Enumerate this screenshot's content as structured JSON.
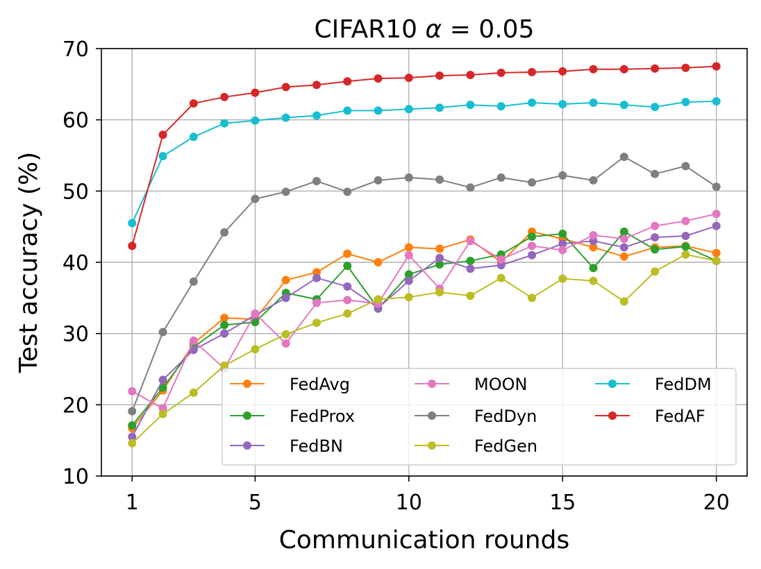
{
  "chart_data": {
    "type": "line",
    "title": "CIFAR10 α = 0.05",
    "title_main": "CIFAR10",
    "title_symbol": "α",
    "title_eq": " = 0.05",
    "xlabel": "Communication rounds",
    "ylabel": "Test accuracy (%)",
    "xlim": [
      0,
      21
    ],
    "ylim": [
      10,
      70
    ],
    "xticks": [
      1,
      5,
      10,
      15,
      20
    ],
    "yticks": [
      10,
      20,
      30,
      40,
      50,
      60,
      70
    ],
    "grid": true,
    "legend_position": "lower-right",
    "x": [
      1,
      2,
      3,
      4,
      5,
      6,
      7,
      8,
      9,
      10,
      11,
      12,
      13,
      14,
      15,
      16,
      17,
      18,
      19,
      20
    ],
    "series": [
      {
        "name": "FedAvg",
        "color": "#ff7f0e",
        "values": [
          16.7,
          22.0,
          28.6,
          32.2,
          32.0,
          37.5,
          38.6,
          41.2,
          40.0,
          42.1,
          41.9,
          43.2,
          40.0,
          44.3,
          43.3,
          42.1,
          40.8,
          42.1,
          42.3,
          41.3
        ]
      },
      {
        "name": "FedProx",
        "color": "#2ca02c",
        "values": [
          17.1,
          22.4,
          28.1,
          31.2,
          31.6,
          35.7,
          34.8,
          39.5,
          33.5,
          38.3,
          39.7,
          40.2,
          41.1,
          43.6,
          44.0,
          39.2,
          44.3,
          41.8,
          42.2,
          40.2
        ]
      },
      {
        "name": "FedBN",
        "color": "#9467bd",
        "values": [
          15.5,
          23.5,
          27.7,
          30.0,
          32.6,
          35.0,
          37.8,
          36.6,
          33.6,
          37.4,
          40.6,
          39.1,
          39.6,
          41.0,
          42.6,
          43.0,
          42.1,
          43.5,
          43.7,
          45.1
        ]
      },
      {
        "name": "MOON",
        "color": "#e377c2",
        "values": [
          21.9,
          19.5,
          29.0,
          25.1,
          32.8,
          28.6,
          34.3,
          34.7,
          34.2,
          41.0,
          36.3,
          43.0,
          40.4,
          42.3,
          41.7,
          43.8,
          43.3,
          45.1,
          45.8,
          46.8
        ]
      },
      {
        "name": "FedDyn",
        "color": "#7f7f7f",
        "values": [
          19.1,
          30.2,
          37.3,
          44.2,
          48.9,
          49.9,
          51.4,
          49.9,
          51.5,
          51.9,
          51.6,
          50.5,
          51.9,
          51.2,
          52.2,
          51.5,
          54.8,
          52.4,
          53.5,
          50.6
        ]
      },
      {
        "name": "FedGen",
        "color": "#bcbd22",
        "values": [
          14.6,
          18.7,
          21.7,
          25.5,
          27.8,
          29.9,
          31.5,
          32.8,
          34.8,
          35.1,
          35.8,
          35.3,
          37.8,
          35.0,
          37.7,
          37.4,
          34.5,
          38.7,
          41.1,
          40.2
        ]
      },
      {
        "name": "FedDM",
        "color": "#17becf",
        "values": [
          45.5,
          54.9,
          57.6,
          59.5,
          59.9,
          60.3,
          60.6,
          61.3,
          61.3,
          61.5,
          61.7,
          62.1,
          61.9,
          62.4,
          62.2,
          62.4,
          62.1,
          61.8,
          62.5,
          62.6
        ]
      },
      {
        "name": "FedAF",
        "color": "#d62728",
        "values": [
          42.3,
          57.9,
          62.3,
          63.2,
          63.8,
          64.6,
          64.9,
          65.4,
          65.8,
          65.9,
          66.2,
          66.3,
          66.6,
          66.7,
          66.8,
          67.1,
          67.1,
          67.2,
          67.3,
          67.5
        ]
      }
    ]
  }
}
